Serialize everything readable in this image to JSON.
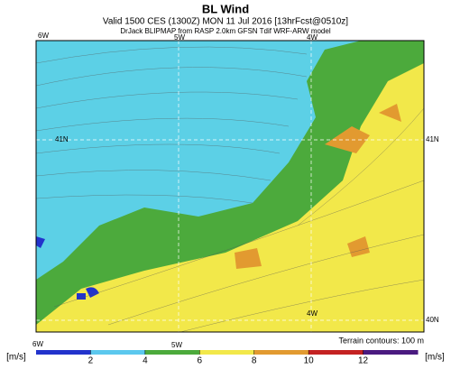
{
  "header": {
    "title": "BL Wind",
    "valid": "Valid 1500 CES (1300Z) MON 11 Jul 2016 [13hrFcst@0510z]",
    "model": "DrJack BLIPMAP from RASP 2.0km GFSN Tdif WRF-ARW model"
  },
  "map": {
    "lon_labels": [
      "6W",
      "5W",
      "4W"
    ],
    "lat_labels": [
      "41N",
      "40N"
    ],
    "terrain_note": "Terrain contours: 100 m"
  },
  "colorbar": {
    "unit": "[m/s]",
    "ticks": [
      2,
      4,
      6,
      8,
      10,
      12
    ],
    "colors": [
      "#2233cc",
      "#5cc8ee",
      "#4caa3c",
      "#f2e84a",
      "#e29a30",
      "#c42222",
      "#4a1a80"
    ]
  }
}
